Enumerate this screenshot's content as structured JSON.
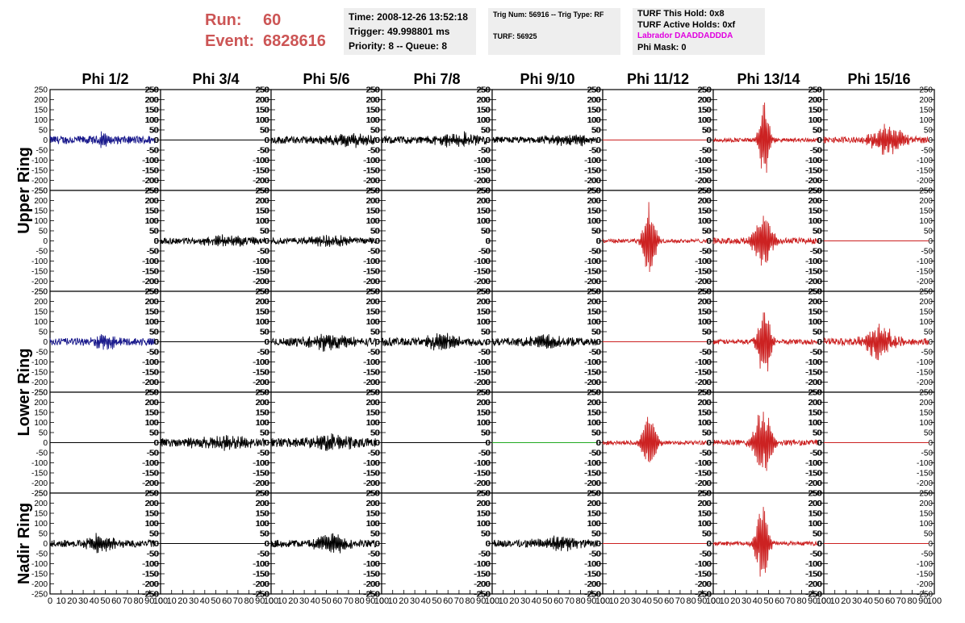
{
  "header": {
    "run_label": "Run:",
    "run_value": "60",
    "event_label": "Event:",
    "event_value": "6828616"
  },
  "info_box_1": {
    "time": "Time: 2008-12-26 13:52:18",
    "trigger": "Trigger: 49.998801 ms",
    "priority": "Priority: 8 -- Queue: 8"
  },
  "info_box_2": {
    "trig": "Trig Num: 56916 -- Trig Type: RF",
    "turf": "TURF: 56925"
  },
  "info_box_3": {
    "hold": "TURF This Hold: 0x8",
    "active": "TURF Active Holds: 0xf",
    "labrador": "Labrador DAADDADDDA",
    "phi_mask": "Phi Mask: 0"
  },
  "colors": {
    "header_red": "#cc5555",
    "labrador_magenta": "#e000e0",
    "trace_black": "#000000",
    "trace_blue": "#1a1a8c",
    "trace_red": "#cc2222",
    "trace_green": "#22aa22",
    "info_bg": "#eeeeee"
  },
  "chart_data": {
    "type": "line",
    "columns": [
      "Phi 1/2",
      "Phi 3/4",
      "Phi 5/6",
      "Phi 7/8",
      "Phi 9/10",
      "Phi 11/12",
      "Phi 13/14",
      "Phi 15/16"
    ],
    "ring_labels": [
      {
        "text": "Upper Ring",
        "rows": [
          0,
          1
        ]
      },
      {
        "text": "Lower Ring",
        "rows": [
          2,
          3
        ]
      },
      {
        "text": "Nadir Ring",
        "rows": [
          4
        ]
      }
    ],
    "ylim": [
      -250,
      250
    ],
    "y_ticks": [
      -250,
      -200,
      -150,
      -100,
      -50,
      0,
      50,
      100,
      150,
      200,
      250
    ],
    "y_tick_labels": [
      "-250",
      "-200",
      "-150",
      "-100",
      "-50",
      "0",
      "50",
      "100",
      "150",
      "200",
      "250"
    ],
    "xlim": [
      0,
      100
    ],
    "x_ticks": [
      0,
      10,
      20,
      30,
      40,
      50,
      60,
      70,
      80,
      90,
      100
    ],
    "x_tick_labels": [
      "0",
      "10",
      "20",
      "30",
      "40",
      "50",
      "60",
      "70",
      "80",
      "90",
      "100"
    ],
    "panels": [
      [
        {
          "color": "blue",
          "amp": 20,
          "peak_t": 48,
          "peak_amp": 55,
          "width": 3
        },
        {
          "color": "black",
          "amp": 0
        },
        {
          "color": "black",
          "amp": 18,
          "peak_t": 70,
          "peak_amp": 28,
          "width": 20
        },
        {
          "color": "black",
          "amp": 18,
          "peak_t": 70,
          "peak_amp": 30,
          "width": 20
        },
        {
          "color": "black",
          "amp": 16,
          "peak_t": 70,
          "peak_amp": 25,
          "width": 20
        },
        {
          "color": "red",
          "amp": 0
        },
        {
          "color": "red",
          "amp": 10,
          "peak_t": 46,
          "peak_amp": 200,
          "width": 5
        },
        {
          "color": "red",
          "amp": 15,
          "peak_t": 58,
          "peak_amp": 75,
          "width": 16
        }
      ],
      [
        {
          "color": "none"
        },
        {
          "color": "black",
          "amp": 15,
          "peak_t": 60,
          "peak_amp": 22,
          "width": 25
        },
        {
          "color": "black",
          "amp": 15,
          "peak_t": 55,
          "peak_amp": 22,
          "width": 25
        },
        {
          "color": "none"
        },
        {
          "color": "none"
        },
        {
          "color": "red",
          "amp": 10,
          "peak_t": 42,
          "peak_amp": 200,
          "width": 6
        },
        {
          "color": "red",
          "amp": 15,
          "peak_t": 45,
          "peak_amp": 140,
          "width": 9
        },
        {
          "color": "red",
          "amp": 0
        }
      ],
      [
        {
          "color": "blue",
          "amp": 18,
          "peak_t": 50,
          "peak_amp": 35,
          "width": 10
        },
        {
          "color": "black",
          "amp": 0
        },
        {
          "color": "black",
          "amp": 20,
          "peak_t": 50,
          "peak_amp": 35,
          "width": 20
        },
        {
          "color": "black",
          "amp": 20,
          "peak_t": 55,
          "peak_amp": 40,
          "width": 15
        },
        {
          "color": "black",
          "amp": 18,
          "peak_t": 50,
          "peak_amp": 28,
          "width": 20
        },
        {
          "color": "red",
          "amp": 0
        },
        {
          "color": "red",
          "amp": 12,
          "peak_t": 46,
          "peak_amp": 200,
          "width": 6
        },
        {
          "color": "red",
          "amp": 18,
          "peak_t": 50,
          "peak_amp": 85,
          "width": 14
        }
      ],
      [
        {
          "color": "black",
          "amp": 0
        },
        {
          "color": "black",
          "amp": 20,
          "peak_t": 55,
          "peak_amp": 30,
          "width": 25
        },
        {
          "color": "black",
          "amp": 22,
          "peak_t": 55,
          "peak_amp": 40,
          "width": 18
        },
        {
          "color": "black",
          "amp": 0
        },
        {
          "color": "green",
          "amp": 0
        },
        {
          "color": "red",
          "amp": 10,
          "peak_t": 42,
          "peak_amp": 150,
          "width": 7
        },
        {
          "color": "red",
          "amp": 14,
          "peak_t": 45,
          "peak_amp": 170,
          "width": 9
        },
        {
          "color": "red",
          "amp": 0
        }
      ],
      [
        {
          "color": "black",
          "amp": 18,
          "peak_t": 45,
          "peak_amp": 45,
          "width": 14
        },
        {
          "color": "black",
          "amp": 0
        },
        {
          "color": "black",
          "amp": 18,
          "peak_t": 55,
          "peak_amp": 45,
          "width": 16
        },
        {
          "color": "none"
        },
        {
          "color": "black",
          "amp": 18,
          "peak_t": 60,
          "peak_amp": 30,
          "width": 20
        },
        {
          "color": "red",
          "amp": 0
        },
        {
          "color": "red",
          "amp": 10,
          "peak_t": 44,
          "peak_amp": 220,
          "width": 6
        },
        {
          "color": "red",
          "amp": 0
        }
      ]
    ]
  }
}
